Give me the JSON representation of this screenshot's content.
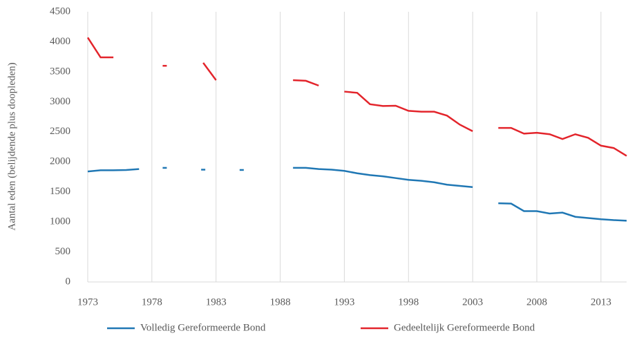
{
  "chart_data": {
    "type": "line",
    "ylabel": "Aantal eden (belijdende plus doopleden)",
    "x": [
      1973,
      1974,
      1975,
      1976,
      1977,
      1978,
      1979,
      1980,
      1981,
      1982,
      1983,
      1984,
      1985,
      1986,
      1987,
      1988,
      1989,
      1990,
      1991,
      1992,
      1993,
      1994,
      1995,
      1996,
      1997,
      1998,
      1999,
      2000,
      2001,
      2002,
      2003,
      2004,
      2005,
      2006,
      2007,
      2008,
      2009,
      2010,
      2011,
      2012,
      2013,
      2014,
      2015
    ],
    "series": [
      {
        "name": "Volledig Gereformeerde Bond",
        "color": "#1f77b4",
        "values": [
          1840,
          1860,
          1860,
          1865,
          1880,
          null,
          1900,
          null,
          null,
          1870,
          null,
          null,
          1865,
          null,
          null,
          null,
          1900,
          1900,
          1880,
          1870,
          1850,
          1810,
          1780,
          1760,
          1730,
          1700,
          1685,
          1660,
          1620,
          1600,
          1580,
          null,
          1310,
          1305,
          1180,
          1180,
          1140,
          1155,
          1085,
          1065,
          1045,
          1030,
          1020
        ]
      },
      {
        "name": "Gedeeltelijk Gereformeerde Bond",
        "color": "#e3242b",
        "values": [
          4070,
          3740,
          3740,
          null,
          null,
          null,
          3600,
          null,
          null,
          3650,
          3360,
          null,
          null,
          null,
          null,
          null,
          3360,
          3350,
          3270,
          null,
          3170,
          3150,
          2960,
          2930,
          2935,
          2850,
          2835,
          2835,
          2770,
          2620,
          2510,
          null,
          2565,
          2565,
          2470,
          2485,
          2460,
          2380,
          2460,
          2400,
          2270,
          2230,
          2100
        ]
      }
    ],
    "xlim": [
      1973,
      2015
    ],
    "xticks": [
      1973,
      1978,
      1983,
      1988,
      1993,
      1998,
      2003,
      2008,
      2013
    ],
    "ylim": [
      0,
      4500
    ],
    "yticks": [
      0,
      500,
      1000,
      1500,
      2000,
      2500,
      3000,
      3500,
      4000,
      4500
    ],
    "grid": true,
    "legend": "bottom"
  }
}
